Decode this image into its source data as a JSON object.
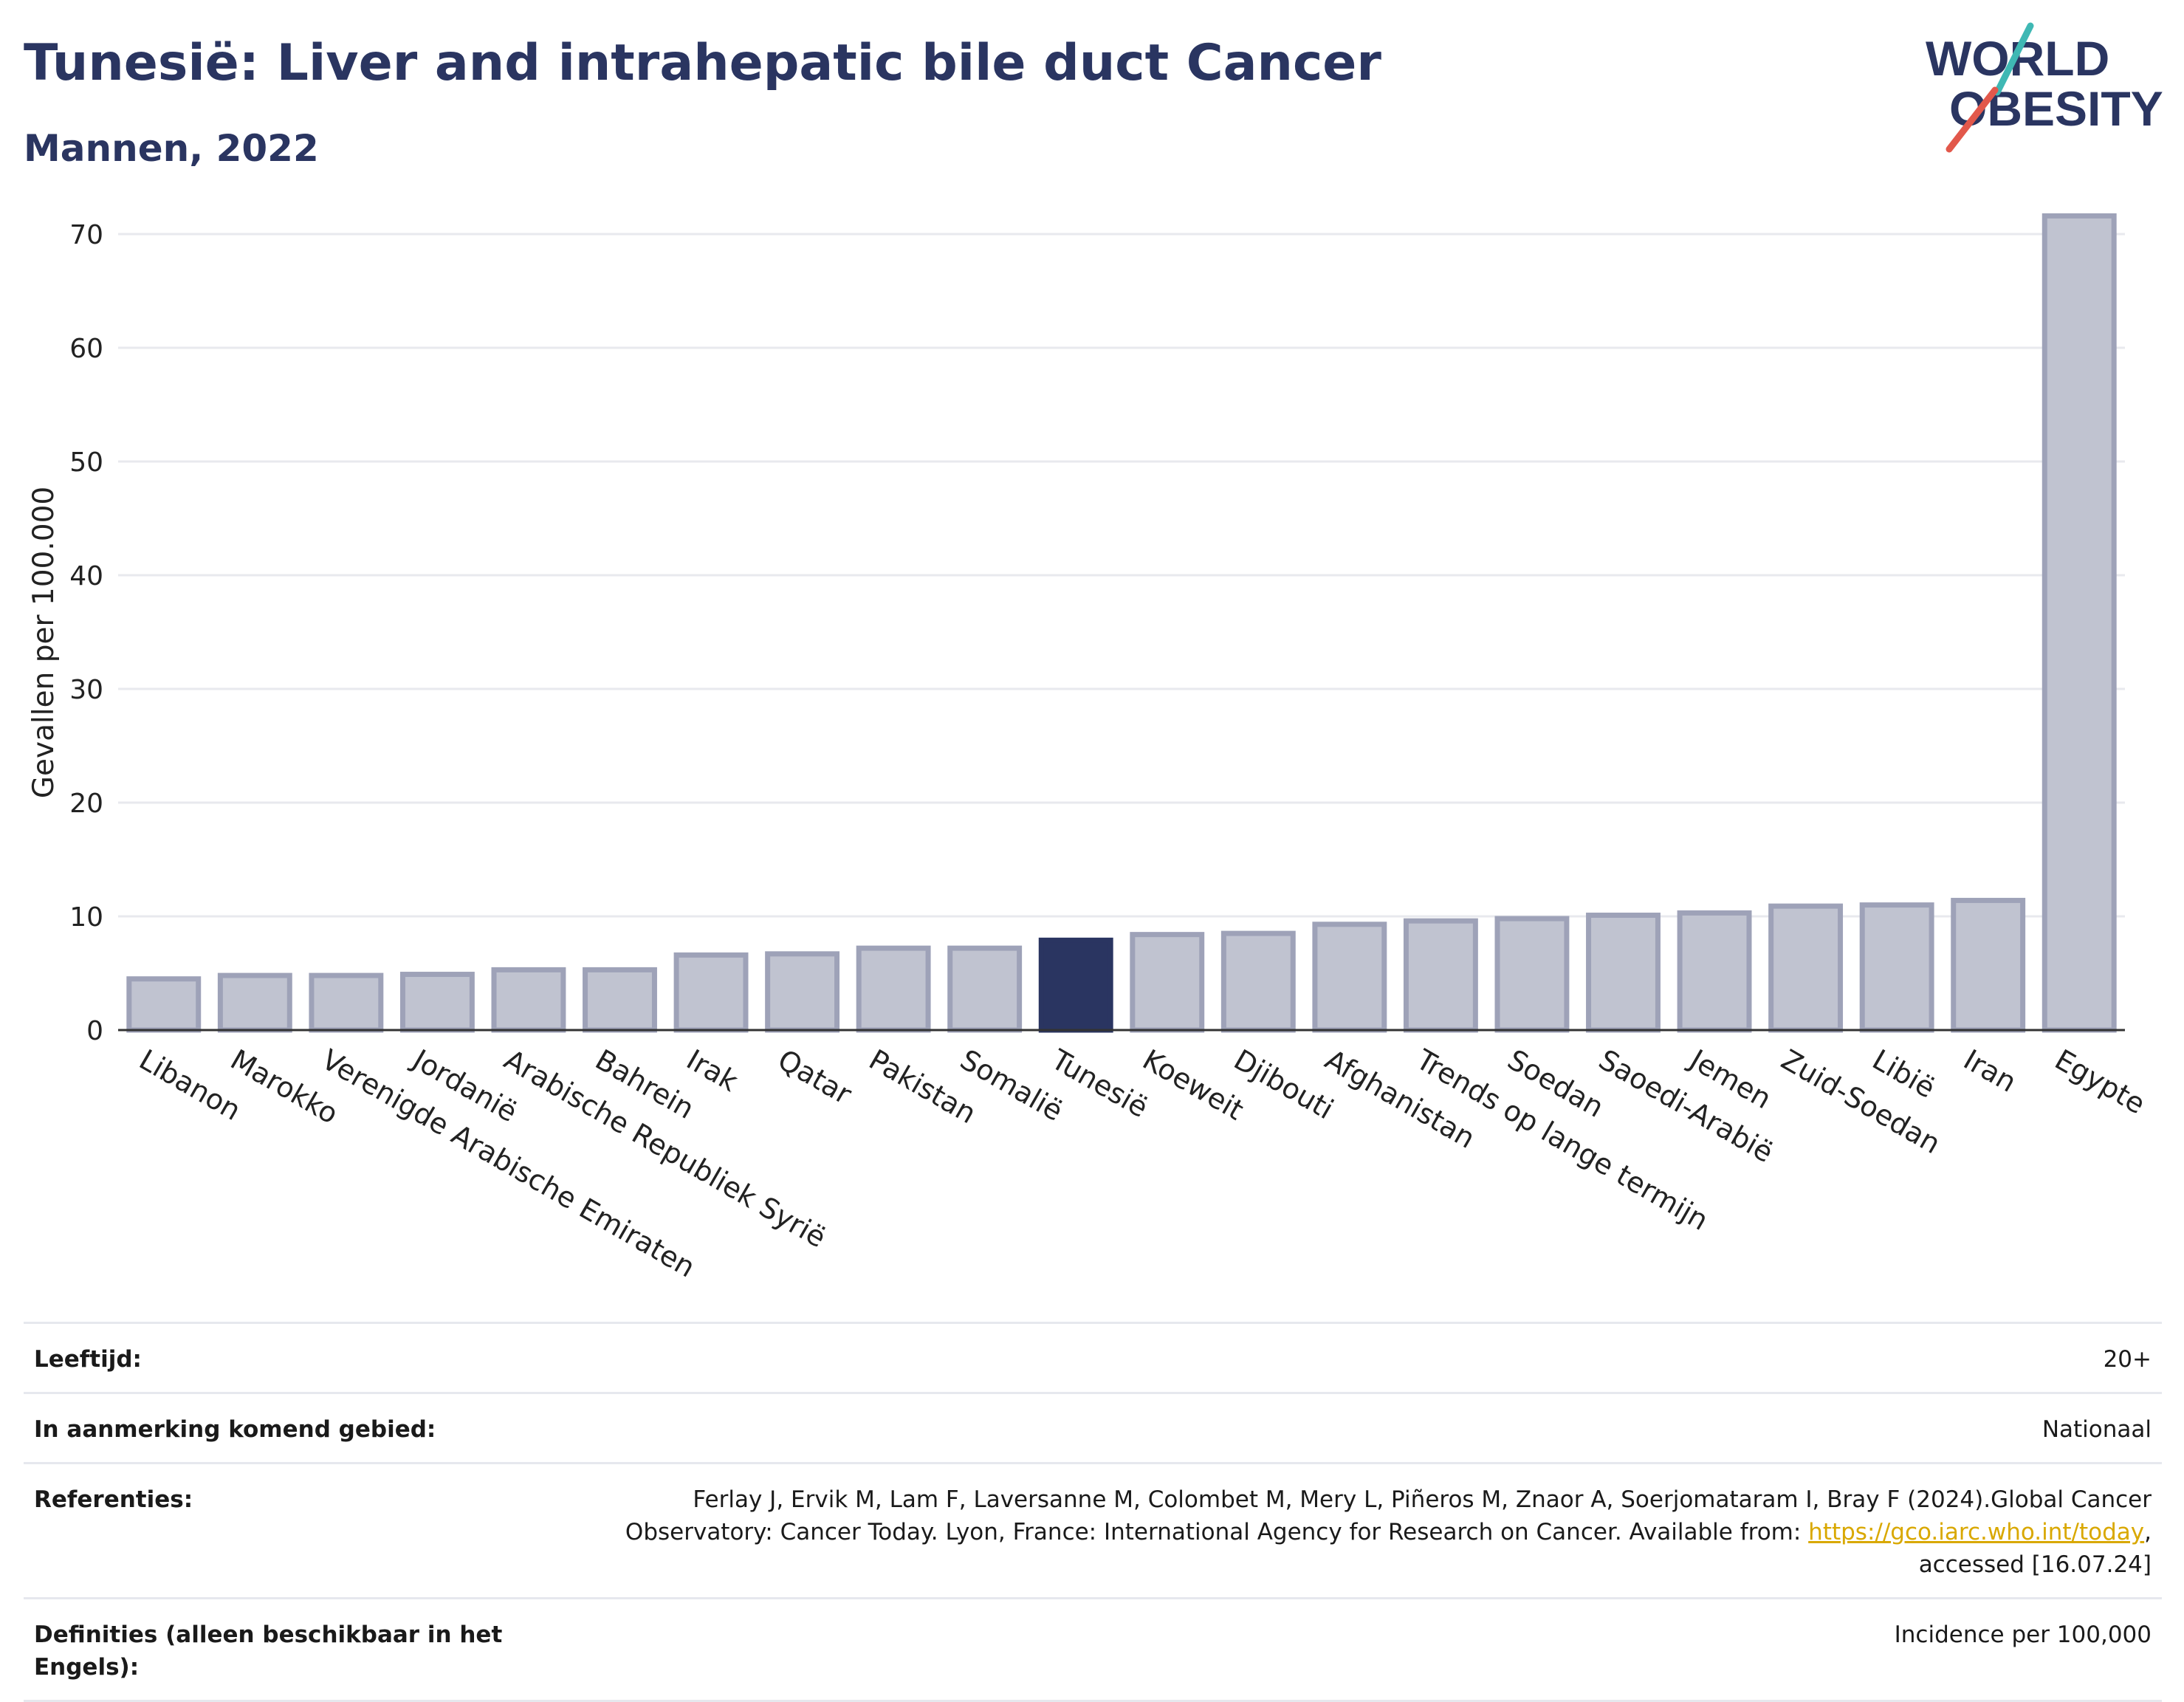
{
  "header": {
    "title": "Tunesië: Liver and intrahepatic bile duct Cancer",
    "subtitle": "Mannen, 2022"
  },
  "logo": {
    "line1": "WORLD",
    "line2": "OBESITY"
  },
  "colors": {
    "bar": "#c0c3d0",
    "bar_stroke": "#9ea2b8",
    "highlight": "#2a3561",
    "title": "#2a3561"
  },
  "chart_data": {
    "type": "bar",
    "ylabel": "Gevallen per 100.000",
    "ylim": [
      0,
      75
    ],
    "yticks": [
      0,
      10,
      20,
      30,
      40,
      50,
      60,
      70
    ],
    "grid": true,
    "highlight": "Tunesië",
    "categories": [
      "Libanon",
      "Marokko",
      "Verenigde Arabische Emiraten",
      "Jordanië",
      "Arabische Republiek Syrië",
      "Bahrein",
      "Irak",
      "Qatar",
      "Pakistan",
      "Somalië",
      "Tunesië",
      "Koeweit",
      "Djibouti",
      "Afghanistan",
      "Trends op lange termijn",
      "Soedan",
      "Saoedi-Arabië",
      "Jemen",
      "Zuid-Soedan",
      "Libië",
      "Iran",
      "Egypte"
    ],
    "values": [
      4.5,
      4.8,
      4.8,
      4.9,
      5.3,
      5.3,
      6.6,
      6.7,
      7.2,
      7.2,
      7.9,
      8.4,
      8.5,
      9.3,
      9.6,
      9.8,
      10.1,
      10.3,
      10.9,
      11.0,
      11.4,
      71.6
    ]
  },
  "meta": {
    "age_label": "Leeftijd:",
    "age_value": "20+",
    "area_label": "In aanmerking komend gebied:",
    "area_value": "Nationaal",
    "ref_label": "Referenties:",
    "ref_text_1": "Ferlay J, Ervik M, Lam F, Laversanne M, Colombet M, Mery L, Piñeros M, Znaor A, Soerjomataram I, Bray F (2024).Global Cancer Observatory: Cancer Today. Lyon, France: International Agency for Research on Cancer. Available from: ",
    "ref_link": "https://gco.iarc.who.int/today",
    "ref_text_2": ", accessed [16.07.24]",
    "def_label": "Definities (alleen beschikbaar in het Engels):",
    "def_value": "Incidence per 100,000"
  }
}
